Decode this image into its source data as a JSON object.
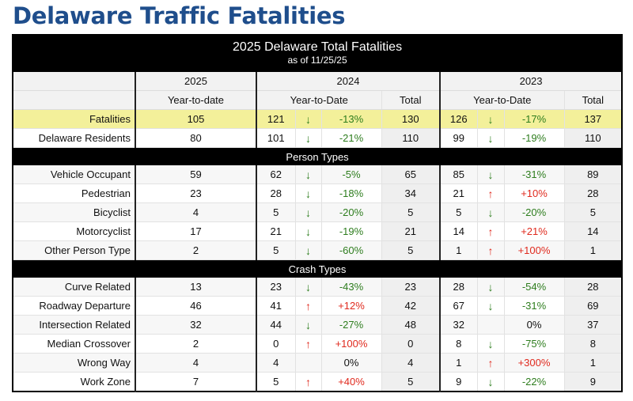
{
  "page_title": "Delaware Traffic Fatalities",
  "table": {
    "title": "2025 Delaware Total Fatalities",
    "subtitle": "as of 11/25/25",
    "years": [
      "2025",
      "2024",
      "2023"
    ],
    "subheaders": {
      "ytd_2025": "Year-to-date",
      "ytd_2024": "Year-to-Date",
      "total_2024": "Total",
      "ytd_2023": "Year-to-Date",
      "total_2023": "Total"
    },
    "colors": {
      "down": "#2e7d1e",
      "up": "#e02a1e",
      "highlight": "#f3f09a",
      "title_color": "#1f4e8c"
    },
    "sections": [
      {
        "heading": "",
        "rows": [
          {
            "label": "Fatalities",
            "highlight": true,
            "y2025": "105",
            "y2024": "121",
            "d2024": "down",
            "p2024": "-13%",
            "t2024": "130",
            "y2023": "126",
            "d2023": "down",
            "p2023": "-17%",
            "t2023": "137"
          },
          {
            "label": "Delaware Residents",
            "y2025": "80",
            "y2024": "101",
            "d2024": "down",
            "p2024": "-21%",
            "t2024": "110",
            "y2023": "99",
            "d2023": "down",
            "p2023": "-19%",
            "t2023": "110"
          }
        ]
      },
      {
        "heading": "Person Types",
        "rows": [
          {
            "label": "Vehicle Occupant",
            "y2025": "59",
            "y2024": "62",
            "d2024": "down",
            "p2024": "-5%",
            "t2024": "65",
            "y2023": "85",
            "d2023": "down",
            "p2023": "-31%",
            "t2023": "89"
          },
          {
            "label": "Pedestrian",
            "y2025": "23",
            "y2024": "28",
            "d2024": "down",
            "p2024": "-18%",
            "t2024": "34",
            "y2023": "21",
            "d2023": "up",
            "p2023": "+10%",
            "t2023": "28"
          },
          {
            "label": "Bicyclist",
            "y2025": "4",
            "y2024": "5",
            "d2024": "down",
            "p2024": "-20%",
            "t2024": "5",
            "y2023": "5",
            "d2023": "down",
            "p2023": "-20%",
            "t2023": "5"
          },
          {
            "label": "Motorcyclist",
            "y2025": "17",
            "y2024": "21",
            "d2024": "down",
            "p2024": "-19%",
            "t2024": "21",
            "y2023": "14",
            "d2023": "up",
            "p2023": "+21%",
            "t2023": "14"
          },
          {
            "label": "Other Person Type",
            "y2025": "2",
            "y2024": "5",
            "d2024": "down",
            "p2024": "-60%",
            "t2024": "5",
            "y2023": "1",
            "d2023": "up",
            "p2023": "+100%",
            "t2023": "1"
          }
        ]
      },
      {
        "heading": "Crash Types",
        "rows": [
          {
            "label": "Curve Related",
            "y2025": "13",
            "y2024": "23",
            "d2024": "down",
            "p2024": "-43%",
            "t2024": "23",
            "y2023": "28",
            "d2023": "down",
            "p2023": "-54%",
            "t2023": "28"
          },
          {
            "label": "Roadway Departure",
            "y2025": "46",
            "y2024": "41",
            "d2024": "up",
            "p2024": "+12%",
            "t2024": "42",
            "y2023": "67",
            "d2023": "down",
            "p2023": "-31%",
            "t2023": "69"
          },
          {
            "label": "Intersection Related",
            "y2025": "32",
            "y2024": "44",
            "d2024": "down",
            "p2024": "-27%",
            "t2024": "48",
            "y2023": "32",
            "d2023": "none",
            "p2023": "0%",
            "t2023": "37"
          },
          {
            "label": "Median Crossover",
            "y2025": "2",
            "y2024": "0",
            "d2024": "up",
            "p2024": "+100%",
            "t2024": "0",
            "y2023": "8",
            "d2023": "down",
            "p2023": "-75%",
            "t2023": "8"
          },
          {
            "label": "Wrong Way",
            "y2025": "4",
            "y2024": "4",
            "d2024": "none",
            "p2024": "0%",
            "t2024": "4",
            "y2023": "1",
            "d2023": "up",
            "p2023": "+300%",
            "t2023": "1"
          },
          {
            "label": "Work Zone",
            "y2025": "7",
            "y2024": "5",
            "d2024": "up",
            "p2024": "+40%",
            "t2024": "5",
            "y2023": "9",
            "d2023": "down",
            "p2023": "-22%",
            "t2023": "9"
          }
        ]
      }
    ]
  }
}
